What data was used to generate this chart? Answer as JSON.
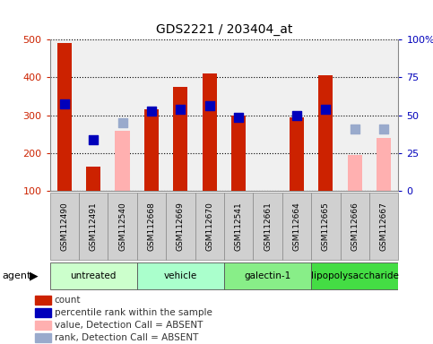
{
  "title": "GDS2221 / 203404_at",
  "samples": [
    "GSM112490",
    "GSM112491",
    "GSM112540",
    "GSM112668",
    "GSM112669",
    "GSM112670",
    "GSM112541",
    "GSM112661",
    "GSM112664",
    "GSM112665",
    "GSM112666",
    "GSM112667"
  ],
  "groups": [
    {
      "name": "untreated",
      "indices": [
        0,
        1,
        2
      ],
      "color": "#ccffcc"
    },
    {
      "name": "vehicle",
      "indices": [
        3,
        4,
        5
      ],
      "color": "#aaffcc"
    },
    {
      "name": "galectin-1",
      "indices": [
        6,
        7,
        8
      ],
      "color": "#88ee88"
    },
    {
      "name": "lipopolysaccharide",
      "indices": [
        9,
        10,
        11
      ],
      "color": "#44dd44"
    }
  ],
  "count_present": [
    490,
    165,
    null,
    315,
    375,
    410,
    300,
    100,
    295,
    405,
    null,
    null
  ],
  "rank_present": [
    330,
    235,
    null,
    310,
    315,
    325,
    295,
    null,
    300,
    315,
    null,
    null
  ],
  "count_absent": [
    null,
    null,
    260,
    null,
    null,
    null,
    null,
    null,
    null,
    null,
    195,
    240
  ],
  "rank_absent": [
    null,
    null,
    280,
    null,
    null,
    null,
    null,
    null,
    null,
    null,
    263,
    263
  ],
  "ylim": [
    100,
    500
  ],
  "yticks_left": [
    100,
    200,
    300,
    400,
    500
  ],
  "yticks_right_vals": [
    100,
    200,
    300,
    400,
    500
  ],
  "yticks_right_labels": [
    "0",
    "25",
    "50",
    "75",
    "100%"
  ],
  "bar_color_present": "#cc2200",
  "bar_color_absent": "#ffb0b0",
  "dot_color_present": "#0000bb",
  "dot_color_absent": "#99aacc",
  "bar_width": 0.5,
  "dot_size": 55,
  "left_tick_color": "#cc2200",
  "right_tick_color": "#0000bb",
  "plot_bg": "#f0f0f0",
  "sample_label_bg": "#d0d0d0",
  "legend_items": [
    {
      "label": "count",
      "color": "#cc2200"
    },
    {
      "label": "percentile rank within the sample",
      "color": "#0000bb"
    },
    {
      "label": "value, Detection Call = ABSENT",
      "color": "#ffb0b0"
    },
    {
      "label": "rank, Detection Call = ABSENT",
      "color": "#99aacc"
    }
  ]
}
